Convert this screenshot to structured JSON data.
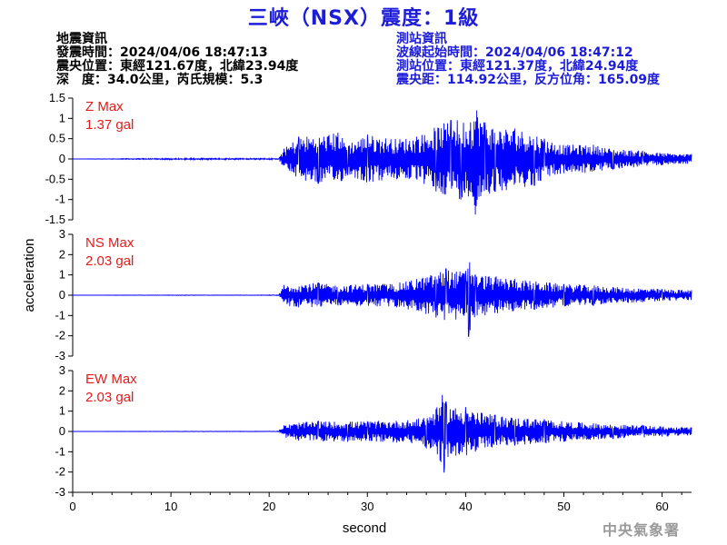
{
  "title": "三峽（NSX）震度：1級",
  "info_left": {
    "heading": "地震資訊",
    "origin_time": "發震時間：2024/04/06 18:47:13",
    "epicenter": "震央位置：東經121.67度，北緯23.94度",
    "depth_magnitude": "深　度：34.0公里，芮氏規模：5.3"
  },
  "info_right": {
    "heading": "測站資訊",
    "wave_start": "波線起始時間：2024/04/06 18:47:12",
    "station_location": "測站位置：東經121.37度，北緯24.94度",
    "distance_azimuth": "震央距：114.92公里，反方位角：165.09度"
  },
  "footer": "中央氣象署",
  "colors": {
    "title": "#1c1cd9",
    "trace": "#0000ff",
    "max_label": "#e21c1c",
    "footer": "#9a9a9a"
  },
  "chart_data": {
    "type": "line",
    "xlabel": "second",
    "ylabel": "acceleration",
    "xlim": [
      0,
      63
    ],
    "x_ticks": [
      0,
      10,
      20,
      30,
      40,
      50,
      60
    ],
    "panels": [
      {
        "name": "Z",
        "max_label_line1": "Z Max",
        "max_label_line2": "1.37 gal",
        "ylim": [
          -1.5,
          1.5
        ],
        "y_ticks": [
          1.5,
          1,
          0.5,
          0,
          -0.5,
          -1,
          -1.5
        ],
        "y_tick_labels": [
          "1.5",
          "1",
          "0.5",
          "0",
          "-0.5",
          "-1",
          "-1.5"
        ],
        "series": [
          {
            "x": [
              0,
              10,
              20,
              21,
              21.5,
              23,
              25,
              27,
              28,
              30,
              33,
              35,
              37,
              38.5,
              39.5,
              40.5,
              41,
              42,
              43,
              45,
              47,
              48,
              50,
              53,
              55,
              58,
              60,
              63
            ],
            "y": [
              0,
              0.03,
              -0.03,
              0.02,
              0.25,
              0.55,
              -0.6,
              0.65,
              -0.4,
              0.6,
              -0.5,
              0.55,
              -0.8,
              0.95,
              -1.0,
              0.9,
              -1.37,
              0.9,
              -0.8,
              0.75,
              -0.65,
              0.5,
              -0.35,
              0.35,
              -0.25,
              0.2,
              -0.15,
              0.12
            ]
          }
        ]
      },
      {
        "name": "NS",
        "max_label_line1": "NS Max",
        "max_label_line2": "2.03 gal",
        "ylim": [
          -3,
          3
        ],
        "y_ticks": [
          3,
          2,
          1,
          0,
          -1,
          -2,
          -3
        ],
        "y_tick_labels": [
          "3",
          "2",
          "1",
          "0",
          "-1",
          "-2",
          "-3"
        ],
        "series": [
          {
            "x": [
              0,
              10,
              20,
              21,
              21.5,
              23,
              25,
              27,
              30,
              33,
              35,
              37,
              38,
              39,
              40,
              40.3,
              41,
              42,
              45,
              47,
              50,
              53,
              55,
              58,
              60,
              63
            ],
            "y": [
              0,
              0.02,
              -0.02,
              0.03,
              0.5,
              -0.6,
              0.6,
              -0.5,
              0.55,
              -0.6,
              0.8,
              -1.1,
              1.3,
              -1.2,
              1.2,
              -2.03,
              1.0,
              -1.0,
              0.8,
              -0.7,
              0.55,
              -0.5,
              0.4,
              -0.35,
              0.3,
              0.25
            ]
          }
        ]
      },
      {
        "name": "EW",
        "max_label_line1": "EW Max",
        "max_label_line2": "2.03 gal",
        "ylim": [
          -3,
          3
        ],
        "y_ticks": [
          3,
          2,
          1,
          0,
          -1,
          -2,
          -3
        ],
        "y_tick_labels": [
          "3",
          "2",
          "1",
          "0",
          "-1",
          "-2",
          "-3"
        ],
        "series": [
          {
            "x": [
              0,
              10,
              20,
              21,
              21.5,
              23,
              25,
              28,
              30,
              33,
              35,
              36,
              37,
              37.8,
              38,
              39,
              40,
              41,
              43,
              45,
              48,
              50,
              53,
              55,
              58,
              60,
              63
            ],
            "y": [
              0,
              0.02,
              -0.02,
              0.03,
              0.3,
              -0.45,
              0.5,
              -0.5,
              0.5,
              -0.55,
              0.6,
              -0.8,
              1.1,
              -2.03,
              1.45,
              -1.2,
              1.2,
              -1.0,
              0.8,
              -0.7,
              0.6,
              -0.5,
              0.4,
              -0.35,
              0.3,
              -0.25,
              0.2
            ]
          }
        ]
      }
    ]
  }
}
